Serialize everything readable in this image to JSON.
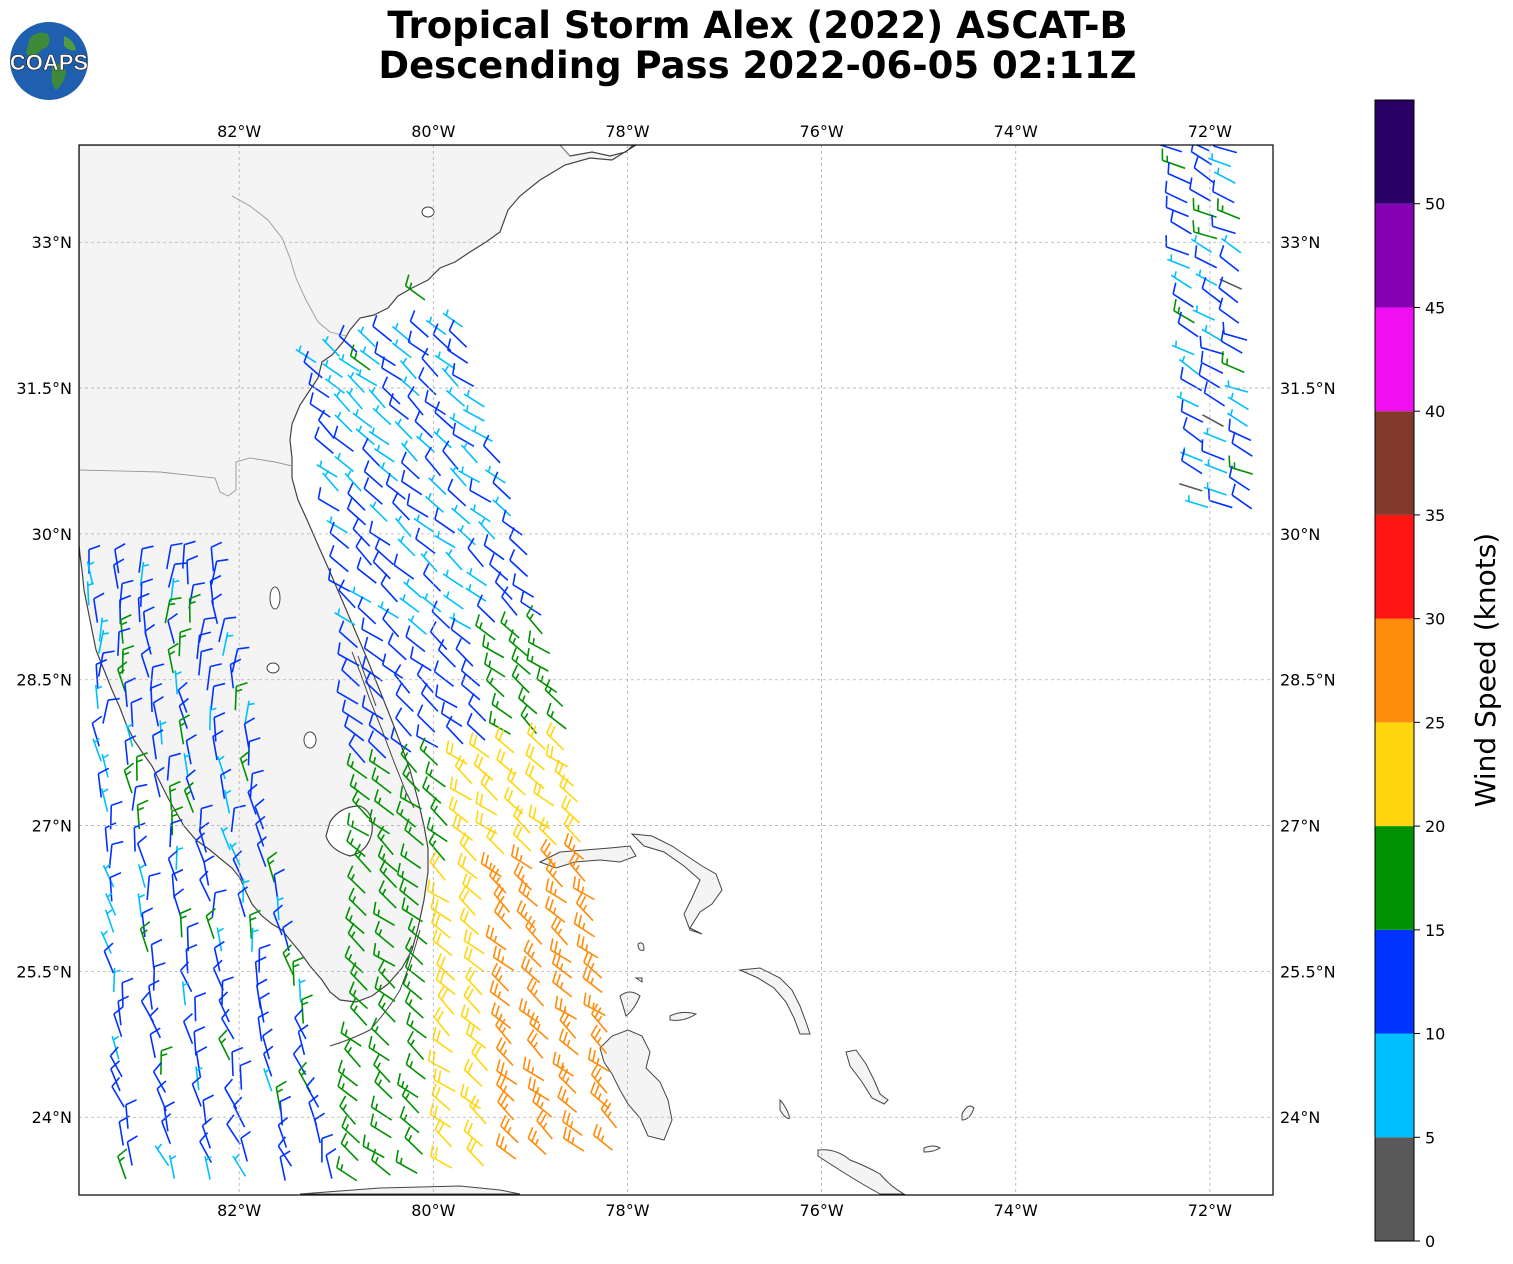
{
  "title": {
    "line1": "Tropical Storm Alex (2022) ASCAT-B",
    "line2": "Descending Pass 2022-06-05 02:11Z"
  },
  "logo": {
    "text": "COAPS",
    "icon": "globe-icon"
  },
  "map": {
    "lon_range": [
      -83.65,
      -71.35
    ],
    "lat_range": [
      23.2,
      34.0
    ],
    "lon_ticks": [
      "82°W",
      "80°W",
      "78°W",
      "76°W",
      "74°W",
      "72°W"
    ],
    "lon_tick_values": [
      -82,
      -80,
      -78,
      -76,
      -74,
      -72
    ],
    "lat_ticks": [
      "33°N",
      "31.5°N",
      "30°N",
      "28.5°N",
      "27°N",
      "25.5°N",
      "24°N"
    ],
    "lat_tick_values": [
      33,
      31.5,
      30,
      28.5,
      27,
      25.5,
      24
    ],
    "grid": true,
    "land_color": "#f4f4f4",
    "coast_color": "#444444"
  },
  "colorbar": {
    "label": "Wind Speed (knots)",
    "ticks": [
      "0",
      "5",
      "10",
      "15",
      "20",
      "25",
      "30",
      "35",
      "40",
      "45",
      "50"
    ],
    "bins": [
      {
        "min": 0,
        "max": 5,
        "color": "#595959"
      },
      {
        "min": 5,
        "max": 10,
        "color": "#00bfff"
      },
      {
        "min": 10,
        "max": 15,
        "color": "#0033ff"
      },
      {
        "min": 15,
        "max": 20,
        "color": "#009100"
      },
      {
        "min": 20,
        "max": 25,
        "color": "#ffd60f"
      },
      {
        "min": 25,
        "max": 30,
        "color": "#ff8c0a"
      },
      {
        "min": 30,
        "max": 35,
        "color": "#ff1414"
      },
      {
        "min": 35,
        "max": 40,
        "color": "#7f3a2a"
      },
      {
        "min": 40,
        "max": 45,
        "color": "#f00ff0"
      },
      {
        "min": 45,
        "max": 50,
        "color": "#8500b3"
      },
      {
        "min": 50,
        "max": 55,
        "color": "#2a0066"
      }
    ]
  }
}
